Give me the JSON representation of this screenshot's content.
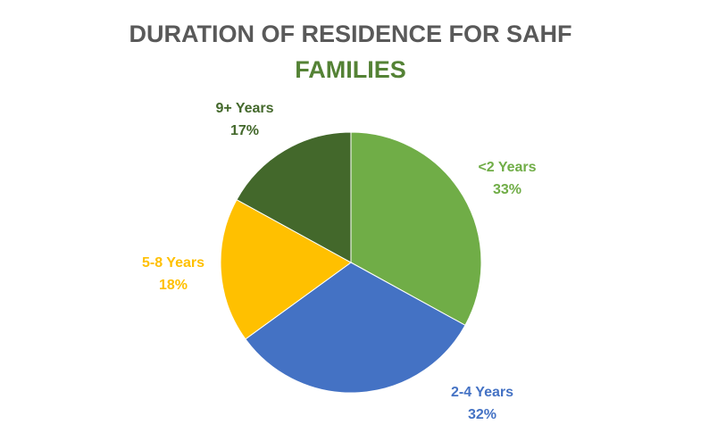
{
  "chart_data": {
    "type": "pie",
    "title_line1": "DURATION OF RESIDENCE FOR SAHF",
    "title_line2": "FAMILIES",
    "slices": [
      {
        "name": "<2 Years",
        "value": 33,
        "pct_label": "33%",
        "color": "#70ad47"
      },
      {
        "name": "2-4 Years",
        "value": 32,
        "pct_label": "32%",
        "color": "#4472c4"
      },
      {
        "name": "5-8 Years",
        "value": 18,
        "pct_label": "18%",
        "color": "#ffc000"
      },
      {
        "name": "9+ Years",
        "value": 17,
        "pct_label": "17%",
        "color": "#43682b"
      }
    ],
    "title_colors": {
      "main": "#595959",
      "accent": "#548235"
    }
  }
}
